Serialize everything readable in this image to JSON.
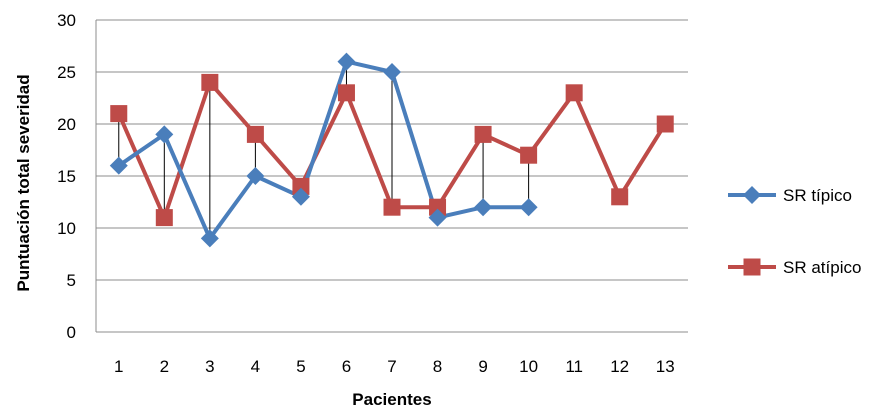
{
  "chart_data": {
    "type": "line",
    "xlabel": "Pacientes",
    "ylabel": "Puntuación total severidad",
    "ylim": [
      0,
      30
    ],
    "yticks": [
      0,
      5,
      10,
      15,
      20,
      25,
      30
    ],
    "categories": [
      "1",
      "2",
      "3",
      "4",
      "5",
      "6",
      "7",
      "8",
      "9",
      "10",
      "11",
      "12",
      "13"
    ],
    "grid": "horizontal",
    "legend_position": "right",
    "series": [
      {
        "name": "SR típico",
        "color": "#4a7ebb",
        "marker": "diamond",
        "values": [
          16,
          19,
          9,
          15,
          13,
          26,
          25,
          11,
          12,
          12,
          null,
          null,
          null
        ]
      },
      {
        "name": "SR atípico",
        "color": "#be4b48",
        "marker": "square",
        "values": [
          21,
          11,
          24,
          19,
          14,
          23,
          12,
          12,
          19,
          17,
          23,
          13,
          20
        ]
      }
    ],
    "drop_lines": true
  }
}
